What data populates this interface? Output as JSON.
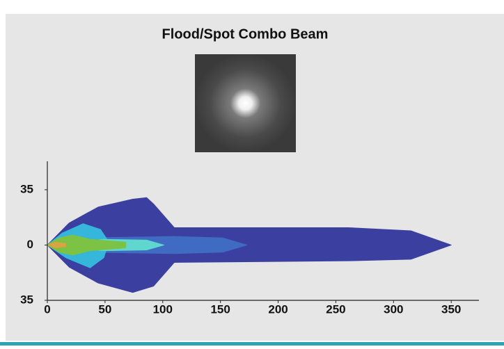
{
  "chart_data": {
    "type": "contour",
    "title": "Flood/Spot Combo Beam",
    "xlim": [
      0,
      374
    ],
    "ylim": [
      -35,
      53
    ],
    "xticks": [
      0,
      50,
      100,
      150,
      200,
      250,
      300,
      350
    ],
    "yticks": [
      35,
      0,
      {
        "value": -35,
        "label": "35"
      }
    ],
    "contours": [
      {
        "color": "#3b40a0",
        "x": [
          0,
          19,
          44,
          74,
          86,
          92,
          110,
          261,
          315,
          350,
          315,
          261,
          110,
          92,
          74,
          44,
          19
        ],
        "values": [
          0,
          14,
          24,
          29,
          30,
          26,
          11,
          11,
          9,
          0,
          -9,
          -10,
          -11,
          -26,
          -30,
          -24,
          -14
        ]
      },
      {
        "color": "#3f6cc2",
        "x": [
          0,
          31,
          110,
          152,
          173,
          152,
          110,
          31
        ],
        "values": [
          0,
          4.5,
          5.4,
          4.5,
          0,
          -4.5,
          -5.4,
          -4.5
        ]
      },
      {
        "color": "#36b6da",
        "x": [
          0,
          13,
          31,
          46,
          53,
          49,
          37,
          16
        ],
        "values": [
          0,
          7.6,
          13.5,
          9.9,
          2.2,
          -8,
          -14.4,
          -8
        ]
      },
      {
        "color": "#5fd7cf",
        "x": [
          0,
          49,
          86,
          101,
          86,
          49
        ],
        "values": [
          0,
          3.6,
          3.1,
          0,
          -3.1,
          -3.6
        ]
      },
      {
        "color": "#7cc244",
        "x": [
          0,
          10,
          22,
          37,
          68,
          68,
          37,
          22,
          10
        ],
        "values": [
          0,
          4.5,
          6.3,
          3.6,
          1.8,
          -1.8,
          -3.6,
          -6.3,
          -4.5
        ]
      },
      {
        "color": "#d9a441",
        "x": [
          0,
          7,
          16,
          16,
          7
        ],
        "values": [
          0,
          1.8,
          0.9,
          -0.9,
          -1.8
        ]
      }
    ]
  }
}
